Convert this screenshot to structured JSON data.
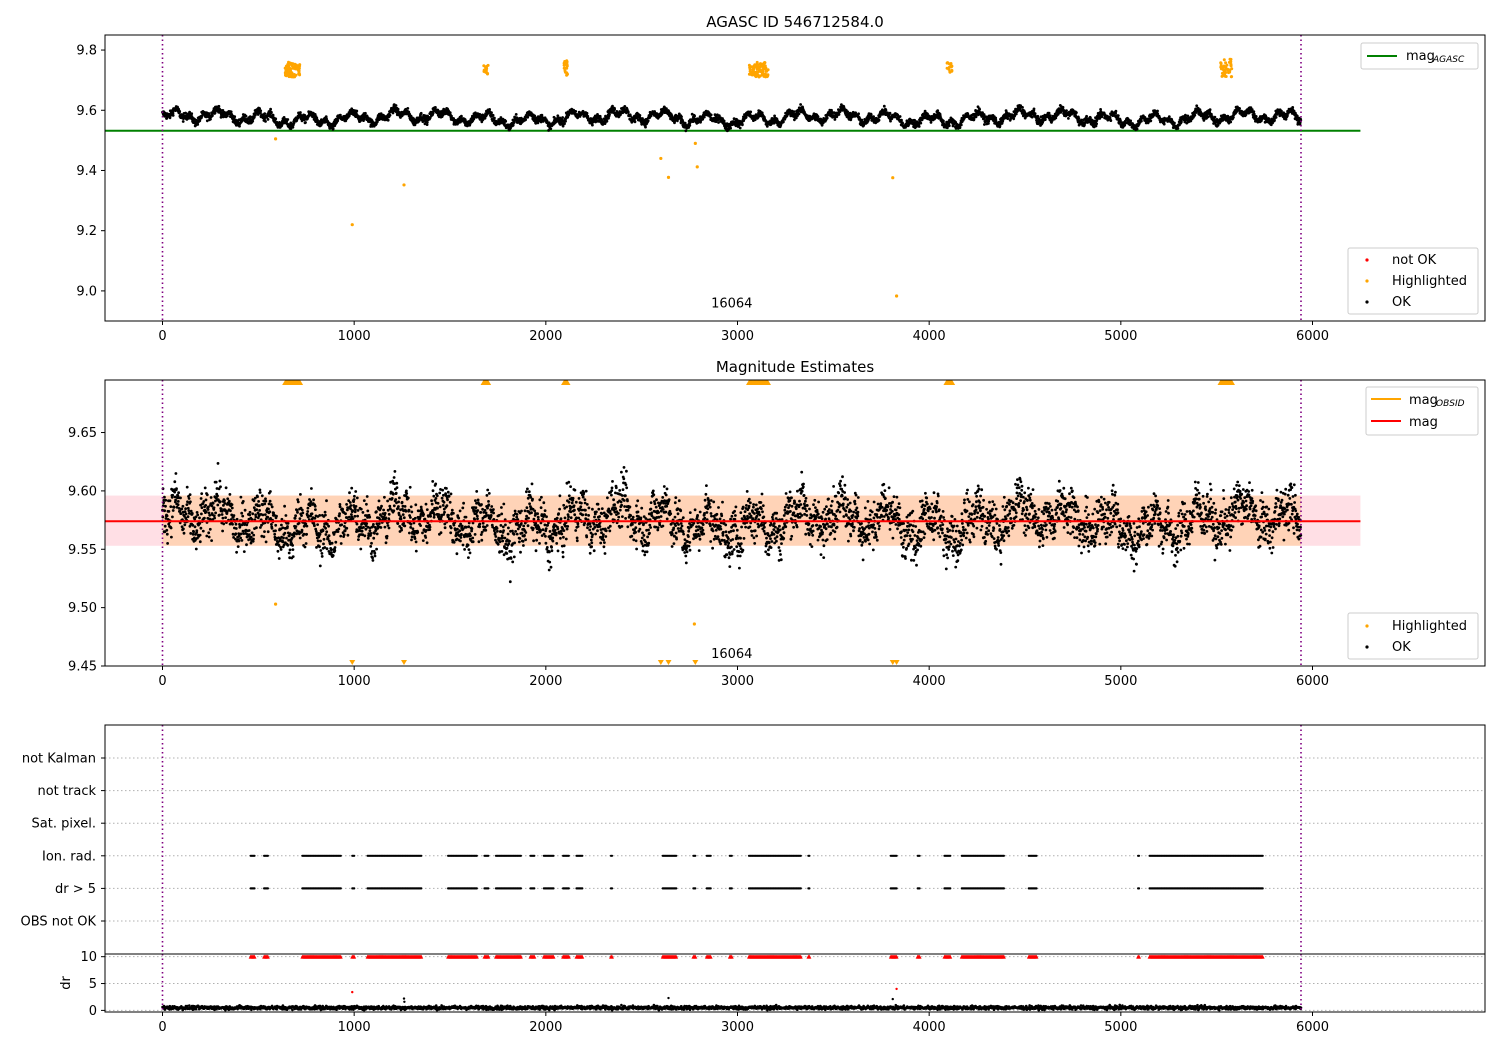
{
  "chart_data": [
    {
      "type": "scatter",
      "title": "AGASC ID 546712584.0",
      "xlim": [
        -300,
        6900
      ],
      "ylim": [
        8.9,
        9.85
      ],
      "xticks": [
        0,
        1000,
        2000,
        3000,
        4000,
        5000,
        6000
      ],
      "xtick_labels": [
        "0",
        "1000",
        "2000",
        "3000",
        "4000",
        "5000",
        "6000"
      ],
      "yticks": [
        9.0,
        9.2,
        9.4,
        9.6,
        9.8
      ],
      "ytick_labels": [
        "9.0",
        "9.2",
        "9.4",
        "9.6",
        "9.8"
      ],
      "grid": false,
      "obsid_lines": [
        0,
        5940
      ],
      "obsid_label": {
        "x": 2970,
        "y": 8.945,
        "text": "16064"
      },
      "hline": {
        "name": "mag",
        "subscript": "AGASC",
        "value": 9.532,
        "color": "#008000",
        "x_range": [
          -300,
          6250
        ]
      },
      "ok_band": {
        "center": 9.575,
        "amplitude": 0.025,
        "noise": 0.012
      },
      "highlighted_clusters": [
        {
          "x_range": [
            640,
            720
          ],
          "y_range": [
            9.71,
            9.76
          ],
          "count": 90
        },
        {
          "x_range": [
            1675,
            1700
          ],
          "y_range": [
            9.72,
            9.75
          ],
          "count": 12
        },
        {
          "x_range": [
            2095,
            2115
          ],
          "y_range": [
            9.715,
            9.765
          ],
          "count": 20
        },
        {
          "x_range": [
            3060,
            3160
          ],
          "y_range": [
            9.71,
            9.76
          ],
          "count": 100
        },
        {
          "x_range": [
            4090,
            4120
          ],
          "y_range": [
            9.725,
            9.76
          ],
          "count": 14
        },
        {
          "x_range": [
            5520,
            5580
          ],
          "y_range": [
            9.71,
            9.77
          ],
          "count": 45
        }
      ],
      "highlighted_outliers": [
        {
          "x": 590,
          "y": 9.505
        },
        {
          "x": 990,
          "y": 9.22
        },
        {
          "x": 1260,
          "y": 9.352
        },
        {
          "x": 2600,
          "y": 9.44
        },
        {
          "x": 2640,
          "y": 9.377
        },
        {
          "x": 2780,
          "y": 9.49
        },
        {
          "x": 2790,
          "y": 9.412
        },
        {
          "x": 3810,
          "y": 9.376
        },
        {
          "x": 3830,
          "y": 8.983
        }
      ],
      "legends": [
        {
          "position": "top-right",
          "entries": [
            {
              "label": "mag",
              "subscript": "AGASC",
              "kind": "line",
              "color": "#008000"
            }
          ]
        },
        {
          "position": "bottom-right",
          "entries": [
            {
              "label": "not OK",
              "kind": "point",
              "color": "#ff0000"
            },
            {
              "label": "Highlighted",
              "kind": "point",
              "color": "#ffa500"
            },
            {
              "label": "OK",
              "kind": "point",
              "color": "#000000"
            }
          ]
        }
      ]
    },
    {
      "type": "scatter",
      "title": "Magnitude Estimates",
      "xlim": [
        -300,
        6900
      ],
      "ylim": [
        9.45,
        9.695
      ],
      "xticks": [
        0,
        1000,
        2000,
        3000,
        4000,
        5000,
        6000
      ],
      "xtick_labels": [
        "0",
        "1000",
        "2000",
        "3000",
        "4000",
        "5000",
        "6000"
      ],
      "yticks": [
        9.45,
        9.5,
        9.55,
        9.6,
        9.65
      ],
      "ytick_labels": [
        "9.45",
        "9.50",
        "9.55",
        "9.60",
        "9.65"
      ],
      "grid": false,
      "obsid_lines": [
        0,
        5940
      ],
      "obsid_label": {
        "x": 2970,
        "y": 9.457,
        "text": "16064"
      },
      "band": {
        "low": 9.553,
        "high": 9.596,
        "x_range": [
          -300,
          6250
        ],
        "color": "#ffc0cb"
      },
      "mag_obsid_band": {
        "low": 9.553,
        "high": 9.596,
        "x_range": [
          0,
          5940
        ],
        "color": "#ffa500"
      },
      "hline": {
        "name": "mag",
        "value": 9.574,
        "color": "#ff0000",
        "x_range": [
          -300,
          6250
        ]
      },
      "ok_band": {
        "center": 9.574,
        "amplitude": 0.018,
        "noise": 0.016
      },
      "top_markers_x_ranges": [
        [
          640,
          720
        ],
        [
          1675,
          1700
        ],
        [
          2095,
          2115
        ],
        [
          3060,
          3160
        ],
        [
          4090,
          4120
        ],
        [
          5520,
          5580
        ]
      ],
      "bottom_markers_x": [
        990,
        1260,
        2600,
        2640,
        2780,
        3810,
        3830
      ],
      "highlighted_points": [
        {
          "x": 590,
          "y": 9.503
        },
        {
          "x": 2775,
          "y": 9.486
        }
      ],
      "legends": [
        {
          "position": "top-right",
          "entries": [
            {
              "label": "mag",
              "subscript": "OBSID",
              "kind": "line",
              "color": "#ffa500"
            },
            {
              "label": "mag",
              "kind": "line",
              "color": "#ff0000"
            }
          ]
        },
        {
          "position": "bottom-right",
          "entries": [
            {
              "label": "Highlighted",
              "kind": "point",
              "color": "#ffa500"
            },
            {
              "label": "OK",
              "kind": "point",
              "color": "#000000"
            }
          ]
        }
      ]
    },
    {
      "type": "scatter",
      "title": "",
      "xlim": [
        -300,
        6900
      ],
      "categories": [
        "not Kalman",
        "not track",
        "Sat. pixel.",
        "Ion. rad.",
        "dr > 5",
        "OBS not OK"
      ],
      "grid": true,
      "obsid_lines": [
        0,
        5940
      ],
      "flag_segments": [
        {
          "category": "Ion. rad.",
          "x_ranges": [
            [
              460,
              480
            ],
            [
              530,
              550
            ],
            [
              730,
              930
            ],
            [
              990,
              1000
            ],
            [
              1070,
              1350
            ],
            [
              1490,
              1640
            ],
            [
              1680,
              1700
            ],
            [
              1740,
              1870
            ],
            [
              1920,
              1940
            ],
            [
              1990,
              2040
            ],
            [
              2090,
              2120
            ],
            [
              2160,
              2190
            ],
            [
              2340,
              2345
            ],
            [
              2610,
              2680
            ],
            [
              2770,
              2780
            ],
            [
              2840,
              2860
            ],
            [
              2960,
              2970
            ],
            [
              3060,
              3330
            ],
            [
              3370,
              3375
            ],
            [
              3800,
              3830
            ],
            [
              3940,
              3950
            ],
            [
              4080,
              4110
            ],
            [
              4170,
              4390
            ],
            [
              4520,
              4560
            ],
            [
              5090,
              5095
            ],
            [
              5150,
              5740
            ]
          ]
        },
        {
          "category": "dr > 5",
          "x_ranges": [
            [
              460,
              480
            ],
            [
              530,
              550
            ],
            [
              730,
              930
            ],
            [
              990,
              1000
            ],
            [
              1070,
              1350
            ],
            [
              1490,
              1640
            ],
            [
              1680,
              1700
            ],
            [
              1740,
              1870
            ],
            [
              1920,
              1940
            ],
            [
              1990,
              2040
            ],
            [
              2090,
              2120
            ],
            [
              2160,
              2190
            ],
            [
              2340,
              2345
            ],
            [
              2610,
              2680
            ],
            [
              2770,
              2780
            ],
            [
              2840,
              2860
            ],
            [
              2960,
              2970
            ],
            [
              3060,
              3330
            ],
            [
              3370,
              3375
            ],
            [
              3800,
              3830
            ],
            [
              3940,
              3950
            ],
            [
              4080,
              4110
            ],
            [
              4170,
              4390
            ],
            [
              4520,
              4560
            ],
            [
              5090,
              5095
            ],
            [
              5150,
              5740
            ]
          ]
        }
      ]
    },
    {
      "type": "scatter",
      "title": "",
      "xlim": [
        -300,
        6900
      ],
      "ylim": [
        -0.3,
        10.5
      ],
      "yticks": [
        0,
        5,
        10
      ],
      "ytick_labels": [
        "0",
        "5",
        "10"
      ],
      "xticks": [
        0,
        1000,
        2000,
        3000,
        4000,
        5000,
        6000
      ],
      "xtick_labels": [
        "0",
        "1000",
        "2000",
        "3000",
        "4000",
        "5000",
        "6000"
      ],
      "ylabel": "dr",
      "grid": true,
      "obsid_lines": [
        0,
        5940
      ],
      "clipped_value": 10,
      "baseline": {
        "center": 0.5,
        "noise": 0.35
      },
      "dr_outliers": [
        {
          "x": 990,
          "y": 3.4
        },
        {
          "x": 1260,
          "y": 2.2
        },
        {
          "x": 1262,
          "y": 1.6
        },
        {
          "x": 2640,
          "y": 2.3
        },
        {
          "x": 3810,
          "y": 2.1
        },
        {
          "x": 3830,
          "y": 4.0
        }
      ]
    }
  ]
}
